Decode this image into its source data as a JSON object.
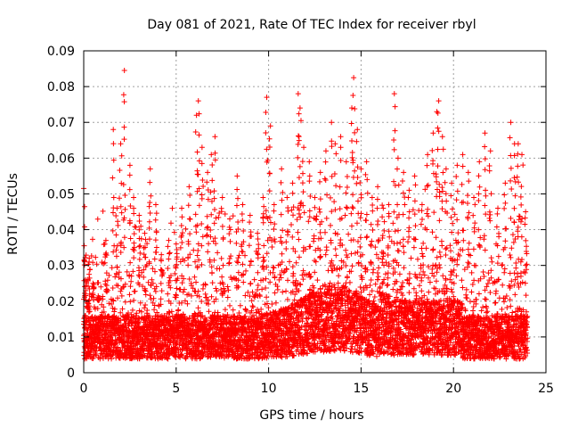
{
  "chart_data": {
    "type": "scatter",
    "title": "Day 081 of 2021, Rate Of TEC Index for receiver rbyl",
    "xlabel": "GPS time / hours",
    "ylabel": "ROTI / TECUs",
    "xlim": [
      0,
      25
    ],
    "ylim": [
      0,
      0.09
    ],
    "xticks": [
      0,
      5,
      10,
      15,
      20,
      25
    ],
    "yticks": [
      0,
      0.01,
      0.02,
      0.03,
      0.04,
      0.05,
      0.06,
      0.07,
      0.08,
      0.09
    ],
    "xtick_labels": [
      "0",
      "5",
      "10",
      "15",
      "20",
      "25"
    ],
    "ytick_labels": [
      "0",
      "0.01",
      "0.02",
      "0.03",
      "0.04",
      "0.05",
      "0.06",
      "0.07",
      "0.08",
      "0.09"
    ],
    "grid": true,
    "marker": "+",
    "color": "#ff0000",
    "x_range_data": [
      0,
      24
    ],
    "series": [
      {
        "name": "ROTI",
        "points": [
          [
            0.0,
            0.0515
          ],
          [
            0.1,
            0.026
          ],
          [
            0.2,
            0.018
          ],
          [
            0.3,
            0.032
          ],
          [
            0.5,
            0.025
          ],
          [
            0.8,
            0.021
          ],
          [
            1.2,
            0.037
          ],
          [
            1.6,
            0.068
          ],
          [
            1.8,
            0.046
          ],
          [
            2.0,
            0.064
          ],
          [
            2.2,
            0.0845
          ],
          [
            2.5,
            0.058
          ],
          [
            2.7,
            0.049
          ],
          [
            3.0,
            0.044
          ],
          [
            3.3,
            0.039
          ],
          [
            3.6,
            0.057
          ],
          [
            3.9,
            0.047
          ],
          [
            4.2,
            0.033
          ],
          [
            4.6,
            0.037
          ],
          [
            5.0,
            0.036
          ],
          [
            5.3,
            0.046
          ],
          [
            5.7,
            0.052
          ],
          [
            6.1,
            0.072
          ],
          [
            6.2,
            0.076
          ],
          [
            6.4,
            0.063
          ],
          [
            6.7,
            0.056
          ],
          [
            6.9,
            0.061
          ],
          [
            7.1,
            0.066
          ],
          [
            7.5,
            0.049
          ],
          [
            7.9,
            0.043
          ],
          [
            8.3,
            0.055
          ],
          [
            8.6,
            0.047
          ],
          [
            9.0,
            0.044
          ],
          [
            9.4,
            0.039
          ],
          [
            9.7,
            0.049
          ],
          [
            9.9,
            0.077
          ],
          [
            10.1,
            0.069
          ],
          [
            10.3,
            0.047
          ],
          [
            10.7,
            0.057
          ],
          [
            11.0,
            0.049
          ],
          [
            11.3,
            0.053
          ],
          [
            11.6,
            0.078
          ],
          [
            11.7,
            0.074
          ],
          [
            11.9,
            0.063
          ],
          [
            12.2,
            0.059
          ],
          [
            12.5,
            0.049
          ],
          [
            12.8,
            0.056
          ],
          [
            13.1,
            0.062
          ],
          [
            13.4,
            0.07
          ],
          [
            13.6,
            0.064
          ],
          [
            13.9,
            0.066
          ],
          [
            14.2,
            0.059
          ],
          [
            14.5,
            0.074
          ],
          [
            14.6,
            0.0825
          ],
          [
            14.8,
            0.068
          ],
          [
            15.0,
            0.057
          ],
          [
            15.3,
            0.059
          ],
          [
            15.6,
            0.049
          ],
          [
            15.9,
            0.052
          ],
          [
            16.2,
            0.046
          ],
          [
            16.5,
            0.047
          ],
          [
            16.8,
            0.078
          ],
          [
            17.0,
            0.06
          ],
          [
            17.3,
            0.056
          ],
          [
            17.6,
            0.051
          ],
          [
            17.9,
            0.055
          ],
          [
            18.3,
            0.047
          ],
          [
            18.6,
            0.061
          ],
          [
            18.9,
            0.067
          ],
          [
            19.1,
            0.073
          ],
          [
            19.2,
            0.076
          ],
          [
            19.4,
            0.066
          ],
          [
            19.6,
            0.057
          ],
          [
            19.9,
            0.053
          ],
          [
            20.2,
            0.058
          ],
          [
            20.5,
            0.061
          ],
          [
            20.8,
            0.056
          ],
          [
            21.1,
            0.049
          ],
          [
            21.4,
            0.059
          ],
          [
            21.7,
            0.067
          ],
          [
            22.0,
            0.062
          ],
          [
            22.4,
            0.046
          ],
          [
            22.8,
            0.053
          ],
          [
            23.1,
            0.07
          ],
          [
            23.3,
            0.064
          ],
          [
            23.5,
            0.064
          ],
          [
            23.7,
            0.061
          ],
          [
            23.9,
            0.045
          ]
        ]
      }
    ]
  }
}
